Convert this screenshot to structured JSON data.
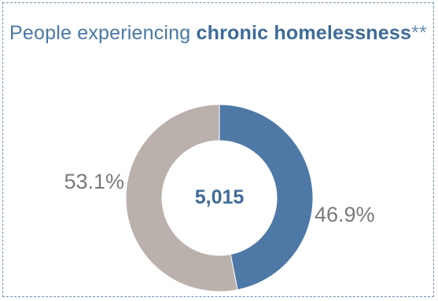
{
  "title": {
    "prefix": "People experiencing ",
    "bold": "chronic homelessness",
    "suffix": "**"
  },
  "chart_data": {
    "type": "pie",
    "style": "donut",
    "center_value": "5,015",
    "slices": [
      {
        "value": 46.9,
        "label": "46.9%",
        "color": "#4e79a7"
      },
      {
        "value": 53.1,
        "label": "53.1%",
        "color": "#bab0ac"
      }
    ]
  }
}
